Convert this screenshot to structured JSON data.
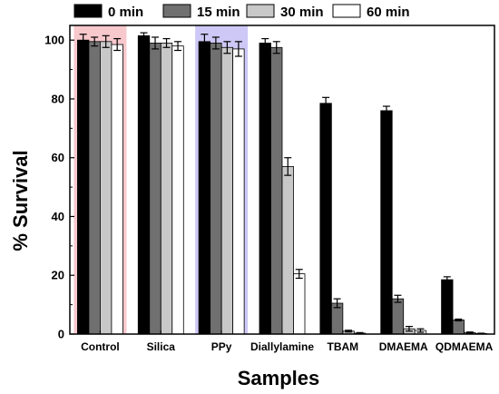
{
  "chart_data": {
    "type": "bar",
    "xlabel": "Samples",
    "ylabel": "% Survival",
    "ylim": [
      0,
      105
    ],
    "yticks": [
      0,
      20,
      40,
      60,
      80,
      100
    ],
    "categories": [
      "Control",
      "Silica",
      "PPy",
      "Diallylamine",
      "TBAM",
      "DMAEMA",
      "QDMAEMA"
    ],
    "series": [
      {
        "name": "0 min",
        "color": "#000000",
        "values": [
          100,
          101.5,
          99.5,
          99,
          78.5,
          76,
          18.5
        ],
        "errors": [
          2,
          1,
          2.5,
          1.5,
          2,
          1.5,
          1
        ]
      },
      {
        "name": "15 min",
        "color": "#707070",
        "values": [
          99.5,
          99,
          99,
          97.5,
          10.5,
          12,
          4.8
        ],
        "errors": [
          1.5,
          2,
          2,
          2,
          1.5,
          1.2,
          0.3
        ]
      },
      {
        "name": "30 min",
        "color": "#c8c8c8",
        "values": [
          99.5,
          99,
          97.5,
          57,
          1,
          1.8,
          0.5
        ],
        "errors": [
          2,
          1.5,
          2,
          3,
          0.3,
          0.8,
          0.2
        ]
      },
      {
        "name": "60 min",
        "color": "#ffffff",
        "values": [
          98.5,
          98,
          97,
          20.5,
          0.3,
          1.2,
          0.2
        ],
        "errors": [
          2,
          1.5,
          2.5,
          1.5,
          0.2,
          0.6,
          0.1
        ]
      }
    ],
    "highlights": [
      {
        "category": "Control",
        "color": "#f7c8cc"
      },
      {
        "category": "PPy",
        "color": "#cdc8f5"
      }
    ],
    "legend_position": "top",
    "grid": false
  }
}
